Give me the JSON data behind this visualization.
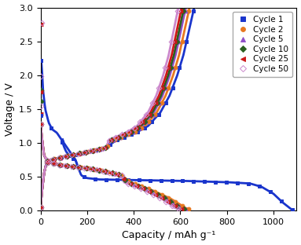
{
  "xlabel": "Capacity / mAh g⁻¹",
  "ylabel": "Voltage / V",
  "xlim": [
    0,
    1100
  ],
  "ylim": [
    0.0,
    3.0
  ],
  "xticks": [
    0,
    200,
    400,
    600,
    800,
    1000
  ],
  "yticks": [
    0.0,
    0.5,
    1.0,
    1.5,
    2.0,
    2.5,
    3.0
  ],
  "cycles": [
    {
      "label": "Cycle 1",
      "color": "#1a35cc",
      "marker": "s",
      "fillstyle": "full",
      "dis_cap": 1080,
      "chg_cap": 660,
      "dis_start_v": 2.22,
      "dis_plateau": 0.45,
      "dis_loop": true
    },
    {
      "label": "Cycle 2",
      "color": "#e87820",
      "marker": "o",
      "fillstyle": "full",
      "dis_cap": 640,
      "chg_cap": 640,
      "dis_start_v": 1.3,
      "dis_plateau": 0.05,
      "dis_loop": false
    },
    {
      "label": "Cycle 5",
      "color": "#9050c8",
      "marker": "^",
      "fillstyle": "full",
      "dis_cap": 625,
      "chg_cap": 624,
      "dis_start_v": 1.3,
      "dis_plateau": 0.02,
      "dis_loop": false
    },
    {
      "label": "Cycle 10",
      "color": "#2a6020",
      "marker": "D",
      "fillstyle": "full",
      "dis_cap": 618,
      "chg_cap": 616,
      "dis_start_v": 1.3,
      "dis_plateau": 0.02,
      "dis_loop": false
    },
    {
      "label": "Cycle 25",
      "color": "#cc1818",
      "marker": "<",
      "fillstyle": "full",
      "dis_cap": 608,
      "chg_cap": 606,
      "dis_start_v": 1.3,
      "dis_plateau": 0.02,
      "dis_loop": false
    },
    {
      "label": "Cycle 50",
      "color": "#cc88cc",
      "marker": "D",
      "fillstyle": "none",
      "dis_cap": 595,
      "chg_cap": 592,
      "dis_start_v": 1.3,
      "dis_plateau": 0.01,
      "dis_loop": false
    }
  ],
  "figsize": [
    3.83,
    3.12
  ],
  "dpi": 100,
  "markersize": 3.5,
  "linewidth": 2.0,
  "background_color": "#ffffff"
}
